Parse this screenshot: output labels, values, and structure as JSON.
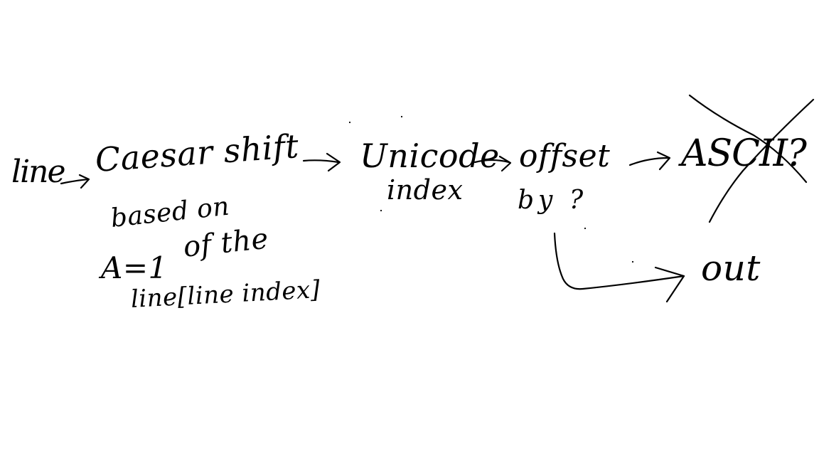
{
  "diagram": {
    "nodes": {
      "line": "line",
      "caesar_shift": "Caesar shift",
      "unicode": "Unicode",
      "index": "index",
      "offset": "offset",
      "by": "by ?",
      "ascii": "ASCII?",
      "out": "out"
    },
    "note": {
      "line1": "based on",
      "line2_a": "A=1",
      "line2_b": "of the",
      "line3": "line[line index]"
    },
    "ink_color": "#000000",
    "background_color": "#ffffff"
  }
}
